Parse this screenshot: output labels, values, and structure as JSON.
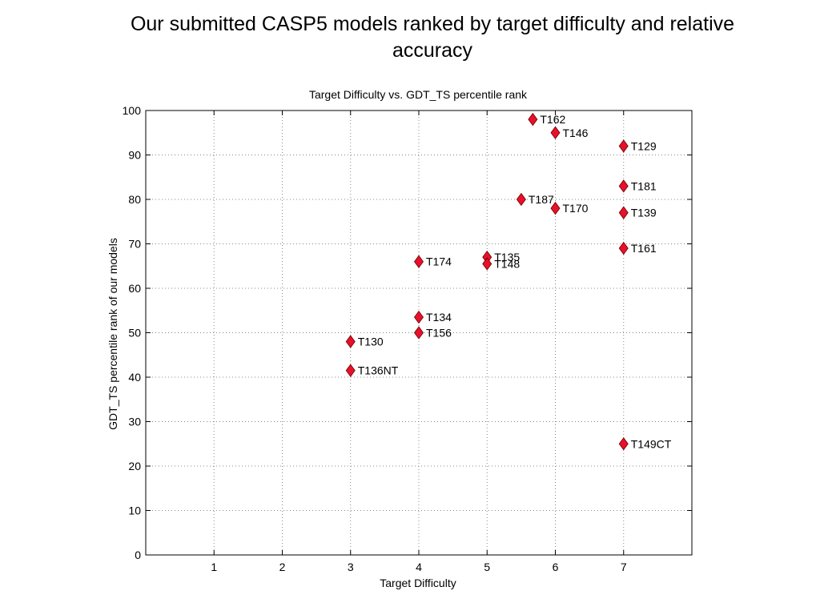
{
  "slide": {
    "title": "Our submitted CASP5 models ranked by target difficulty and relative accuracy"
  },
  "chart_data": {
    "type": "scatter",
    "title": "Target Difficulty vs. GDT_TS percentile rank",
    "xlabel": "Target Difficulty",
    "ylabel": "GDT_TS percentile rank of our models",
    "xlim": [
      0,
      8
    ],
    "ylim": [
      0,
      100
    ],
    "xticks": [
      1,
      2,
      3,
      4,
      5,
      6,
      7
    ],
    "yticks": [
      0,
      10,
      20,
      30,
      40,
      50,
      60,
      70,
      80,
      90,
      100
    ],
    "grid": true,
    "marker": "diamond",
    "marker_color": "#e8102a",
    "points": [
      {
        "label": "T162",
        "x": 5.67,
        "y": 98
      },
      {
        "label": "T146",
        "x": 6,
        "y": 95
      },
      {
        "label": "T129",
        "x": 7,
        "y": 92
      },
      {
        "label": "T181",
        "x": 7,
        "y": 83
      },
      {
        "label": "T187",
        "x": 5.5,
        "y": 80
      },
      {
        "label": "T170",
        "x": 6,
        "y": 78
      },
      {
        "label": "T139",
        "x": 7,
        "y": 77
      },
      {
        "label": "T161",
        "x": 7,
        "y": 69
      },
      {
        "label": "T174",
        "x": 4,
        "y": 66
      },
      {
        "label": "T135",
        "x": 5,
        "y": 67
      },
      {
        "label": "T148",
        "x": 5,
        "y": 65.5
      },
      {
        "label": "T134",
        "x": 4,
        "y": 53.5
      },
      {
        "label": "T156",
        "x": 4,
        "y": 50
      },
      {
        "label": "T130",
        "x": 3,
        "y": 48
      },
      {
        "label": "T136NT",
        "x": 3,
        "y": 41.5
      },
      {
        "label": "T149CT",
        "x": 7,
        "y": 25
      }
    ]
  }
}
